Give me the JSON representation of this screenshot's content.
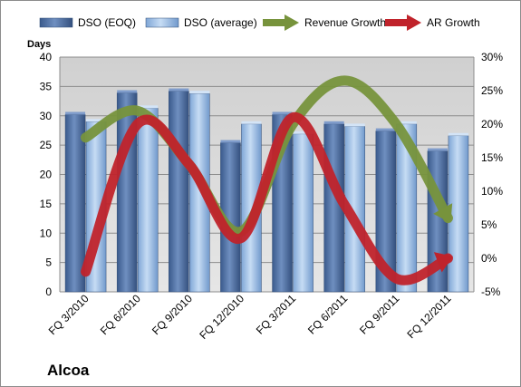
{
  "company": "Alcoa",
  "colors": {
    "dso_eoq": "#4f6fa0",
    "dso_avg": "#8db3e2",
    "revenue_growth": "#77933c",
    "ar_growth": "#c0232b",
    "plot_background": "#d9d9d9",
    "grid": "#8c8c8c"
  },
  "chart_data": {
    "type": "bar",
    "categories": [
      "FQ 3/2010",
      "FQ 6/2010",
      "FQ 9/2010",
      "FQ 12/2010",
      "FQ 3/2011",
      "FQ 6/2011",
      "FQ 9/2011",
      "FQ 12/2011"
    ],
    "ylabel": "Days",
    "ylim": [
      0,
      40
    ],
    "yticks": [
      0,
      5,
      10,
      15,
      20,
      25,
      30,
      35,
      40
    ],
    "y2lim": [
      -5,
      30
    ],
    "y2ticks": [
      "-5%",
      "0%",
      "5%",
      "10%",
      "15%",
      "20%",
      "25%",
      "30%"
    ],
    "grid": true,
    "legend_position": "top",
    "series": [
      {
        "name": "DSO (EOQ)",
        "type": "bar",
        "axis": "left",
        "values": [
          30.2,
          33.9,
          34.2,
          25.4,
          30.2,
          28.6,
          27.4,
          24.0
        ]
      },
      {
        "name": "DSO (average)",
        "type": "bar",
        "axis": "left",
        "values": [
          29.0,
          31.3,
          33.8,
          28.6,
          26.9,
          28.2,
          28.6,
          26.6
        ]
      },
      {
        "name": "Revenue Growth",
        "type": "line",
        "axis": "right",
        "unit": "%",
        "values": [
          18,
          22,
          14,
          4,
          20,
          26.5,
          20,
          6
        ]
      },
      {
        "name": "AR Growth",
        "type": "line",
        "axis": "right",
        "unit": "%",
        "values": [
          -2,
          20,
          14,
          3,
          21,
          8,
          -3,
          0
        ]
      }
    ]
  }
}
